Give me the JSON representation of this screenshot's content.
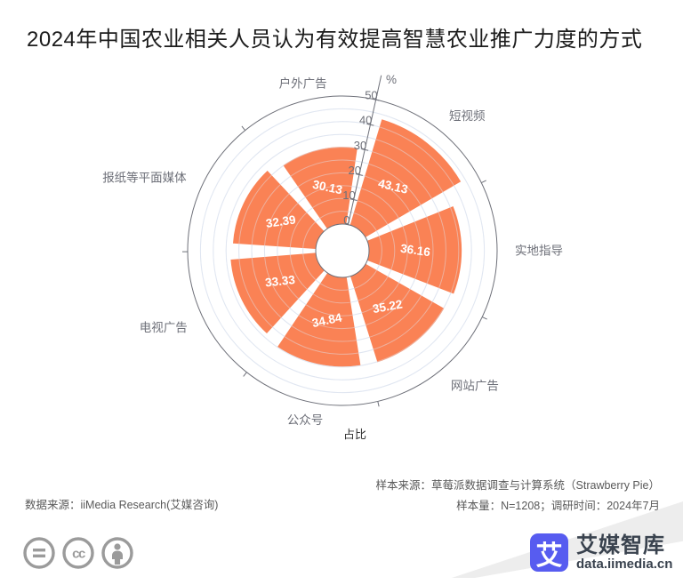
{
  "title": "2024年中国农业相关人员认为有效提高智慧农业推广力度的方式",
  "chart_data": {
    "type": "bar",
    "subtype": "polar-rose-bar",
    "categories": [
      "短视频",
      "实地指导",
      "网站广告",
      "公众号",
      "电视广告",
      "报纸等平面媒体",
      "户外广告"
    ],
    "series": [
      {
        "name": "占比",
        "values": [
          43.13,
          36.16,
          35.22,
          34.84,
          33.33,
          32.39,
          30.13
        ]
      }
    ],
    "unit": "%",
    "radial_axis": {
      "min": 0,
      "max": 50,
      "tick_labels": [
        "0",
        "10",
        "20",
        "30",
        "40",
        "50"
      ],
      "minor_step": 5
    },
    "start_angle_deg": 77.5,
    "clockwise": true,
    "legend_position": "bottom",
    "grid": true,
    "title": "2024年中国农业相关人员认为有效提高智慧农业推广力度的方式"
  },
  "legend": {
    "label": "占比"
  },
  "axis": {
    "unit_label": "%"
  },
  "footer": {
    "source_left": "数据来源：iiMedia Research(艾媒咨询)",
    "sample_source": "样本来源：草莓派数据调查与计算系统（Strawberry Pie）",
    "sample_info": "样本量：N=1208；调研时间：2024年7月"
  },
  "branding": {
    "logo_glyph": "艾",
    "logo_name": "艾媒智库",
    "logo_url_text": "data.iimedia.cn"
  },
  "colors": {
    "bar": "#FA8255",
    "grid_line": "#E0E6F1",
    "axis_line": "#6E7079",
    "category_label": "#6E7079",
    "value_label": "#FFFFFF",
    "title_text": "#1c1c1c",
    "footer_text": "#595959",
    "logo_blue": "#575CF0",
    "cc_gray": "#9b9b9b"
  }
}
